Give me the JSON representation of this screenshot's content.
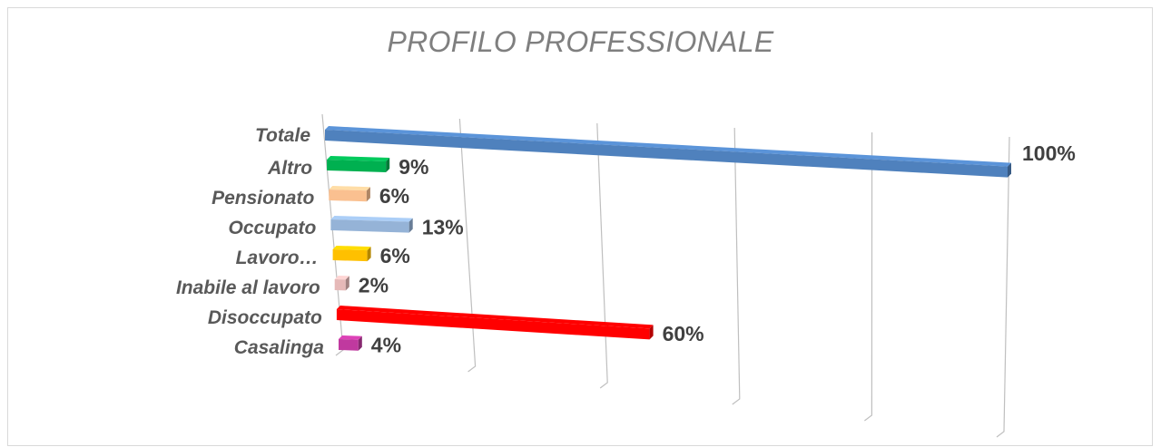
{
  "chart_data": {
    "type": "bar",
    "orientation": "horizontal",
    "style": "3d",
    "title": "PROFILO PROFESSIONALE",
    "xlim": [
      0,
      100
    ],
    "grid": true,
    "legend": "none",
    "categories": [
      "Totale",
      "Altro",
      "Pensionato",
      "Occupato",
      "Lavoro…",
      "Inabile al lavoro",
      "Disoccupato",
      "Casalinga"
    ],
    "values": [
      100,
      9,
      6,
      13,
      6,
      2,
      60,
      4
    ],
    "data_labels": [
      "100%",
      "9%",
      "6%",
      "13%",
      "6%",
      "2%",
      "60%",
      "4%"
    ],
    "colors": [
      "#4f81bd",
      "#00b050",
      "#fac090",
      "#95b3d7",
      "#ffc000",
      "#e6b9b8",
      "#ff0000",
      "#c0399f"
    ]
  }
}
